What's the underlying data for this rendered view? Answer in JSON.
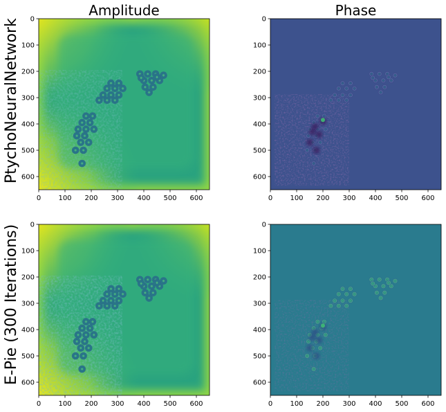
{
  "figure": {
    "columns": [
      {
        "title": "Amplitude"
      },
      {
        "title": "Phase"
      }
    ],
    "rows": [
      {
        "label": "PtychoNeuralNetwork"
      },
      {
        "label": "E-Pie (300 Iterations)"
      }
    ],
    "axes": {
      "x_ticks": [
        "0",
        "100",
        "200",
        "300",
        "400",
        "500",
        "600"
      ],
      "y_ticks": [
        "0",
        "100",
        "200",
        "300",
        "400",
        "500",
        "600"
      ],
      "range": [
        0,
        650
      ]
    },
    "colors": {
      "amp_bright": "#e6e51c",
      "amp_mid": "#37b779",
      "amp_base": "#2aa37f",
      "amp_dark": "#2d7e8c",
      "phase1_base": "#3d528d",
      "phase2_base": "#2a7b8e",
      "phase_dark": "#45256b",
      "phase_light": "#3fbc73"
    }
  }
}
